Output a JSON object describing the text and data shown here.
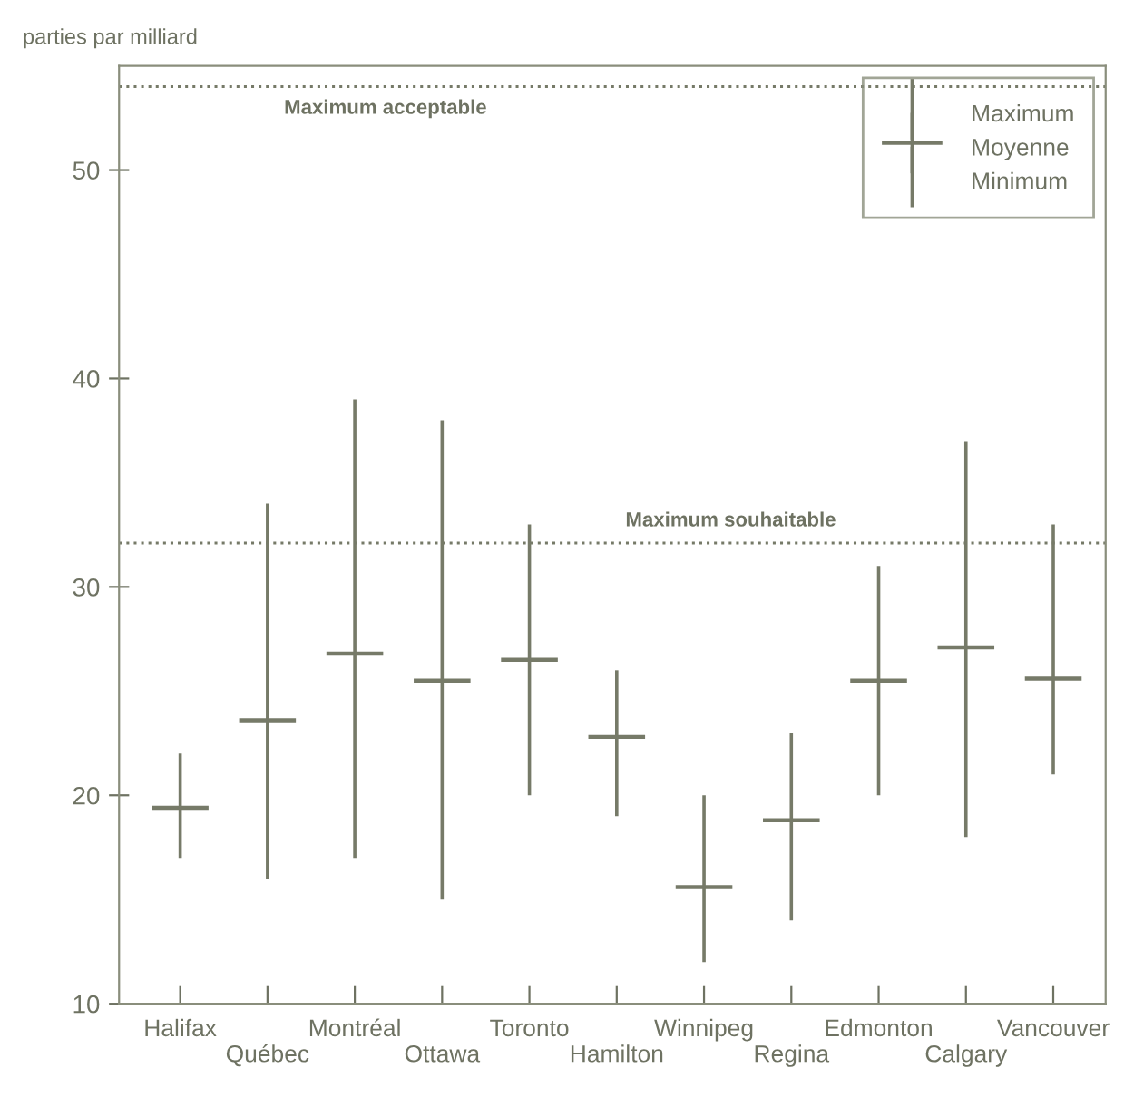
{
  "chart_data": {
    "type": "candlestick",
    "ylabel": "parties par milliard",
    "categories": [
      "Halifax",
      "Québec",
      "Montréal",
      "Ottawa",
      "Toronto",
      "Hamilton",
      "Winnipeg",
      "Regina",
      "Edmonton",
      "Calgary",
      "Vancouver"
    ],
    "series": [
      {
        "name": "Moyenne",
        "color": "#767a68",
        "ohlc": [
          [
            19.4,
            22,
            17,
            19.4
          ],
          [
            23.6,
            34,
            16,
            23.6
          ],
          [
            26.8,
            39,
            17,
            26.8
          ],
          [
            25.5,
            38,
            15,
            25.5
          ],
          [
            26.5,
            33,
            20,
            26.5
          ],
          [
            22.8,
            26,
            19,
            22.8
          ],
          [
            15.6,
            20,
            12,
            15.6
          ],
          [
            18.8,
            23,
            14,
            18.8
          ],
          [
            25.5,
            31,
            20,
            25.5
          ],
          [
            27.1,
            37,
            18,
            27.1
          ],
          [
            25.6,
            33,
            21,
            25.6
          ]
        ]
      }
    ],
    "ylim": [
      10,
      55
    ],
    "yticks": [
      10,
      20,
      30,
      40,
      50
    ],
    "ref_lines": [
      {
        "axis": "y",
        "value": 54,
        "label": "Maximum acceptable",
        "line_style": "dotted",
        "color": "#767a68"
      },
      {
        "axis": "y",
        "value": 32.1,
        "label": "Maximum souhaitable",
        "line_style": "dotted",
        "color": "#767a68"
      }
    ],
    "annotations": [
      "Maximum",
      "Minimum"
    ],
    "legend": "top right",
    "grid": false
  }
}
